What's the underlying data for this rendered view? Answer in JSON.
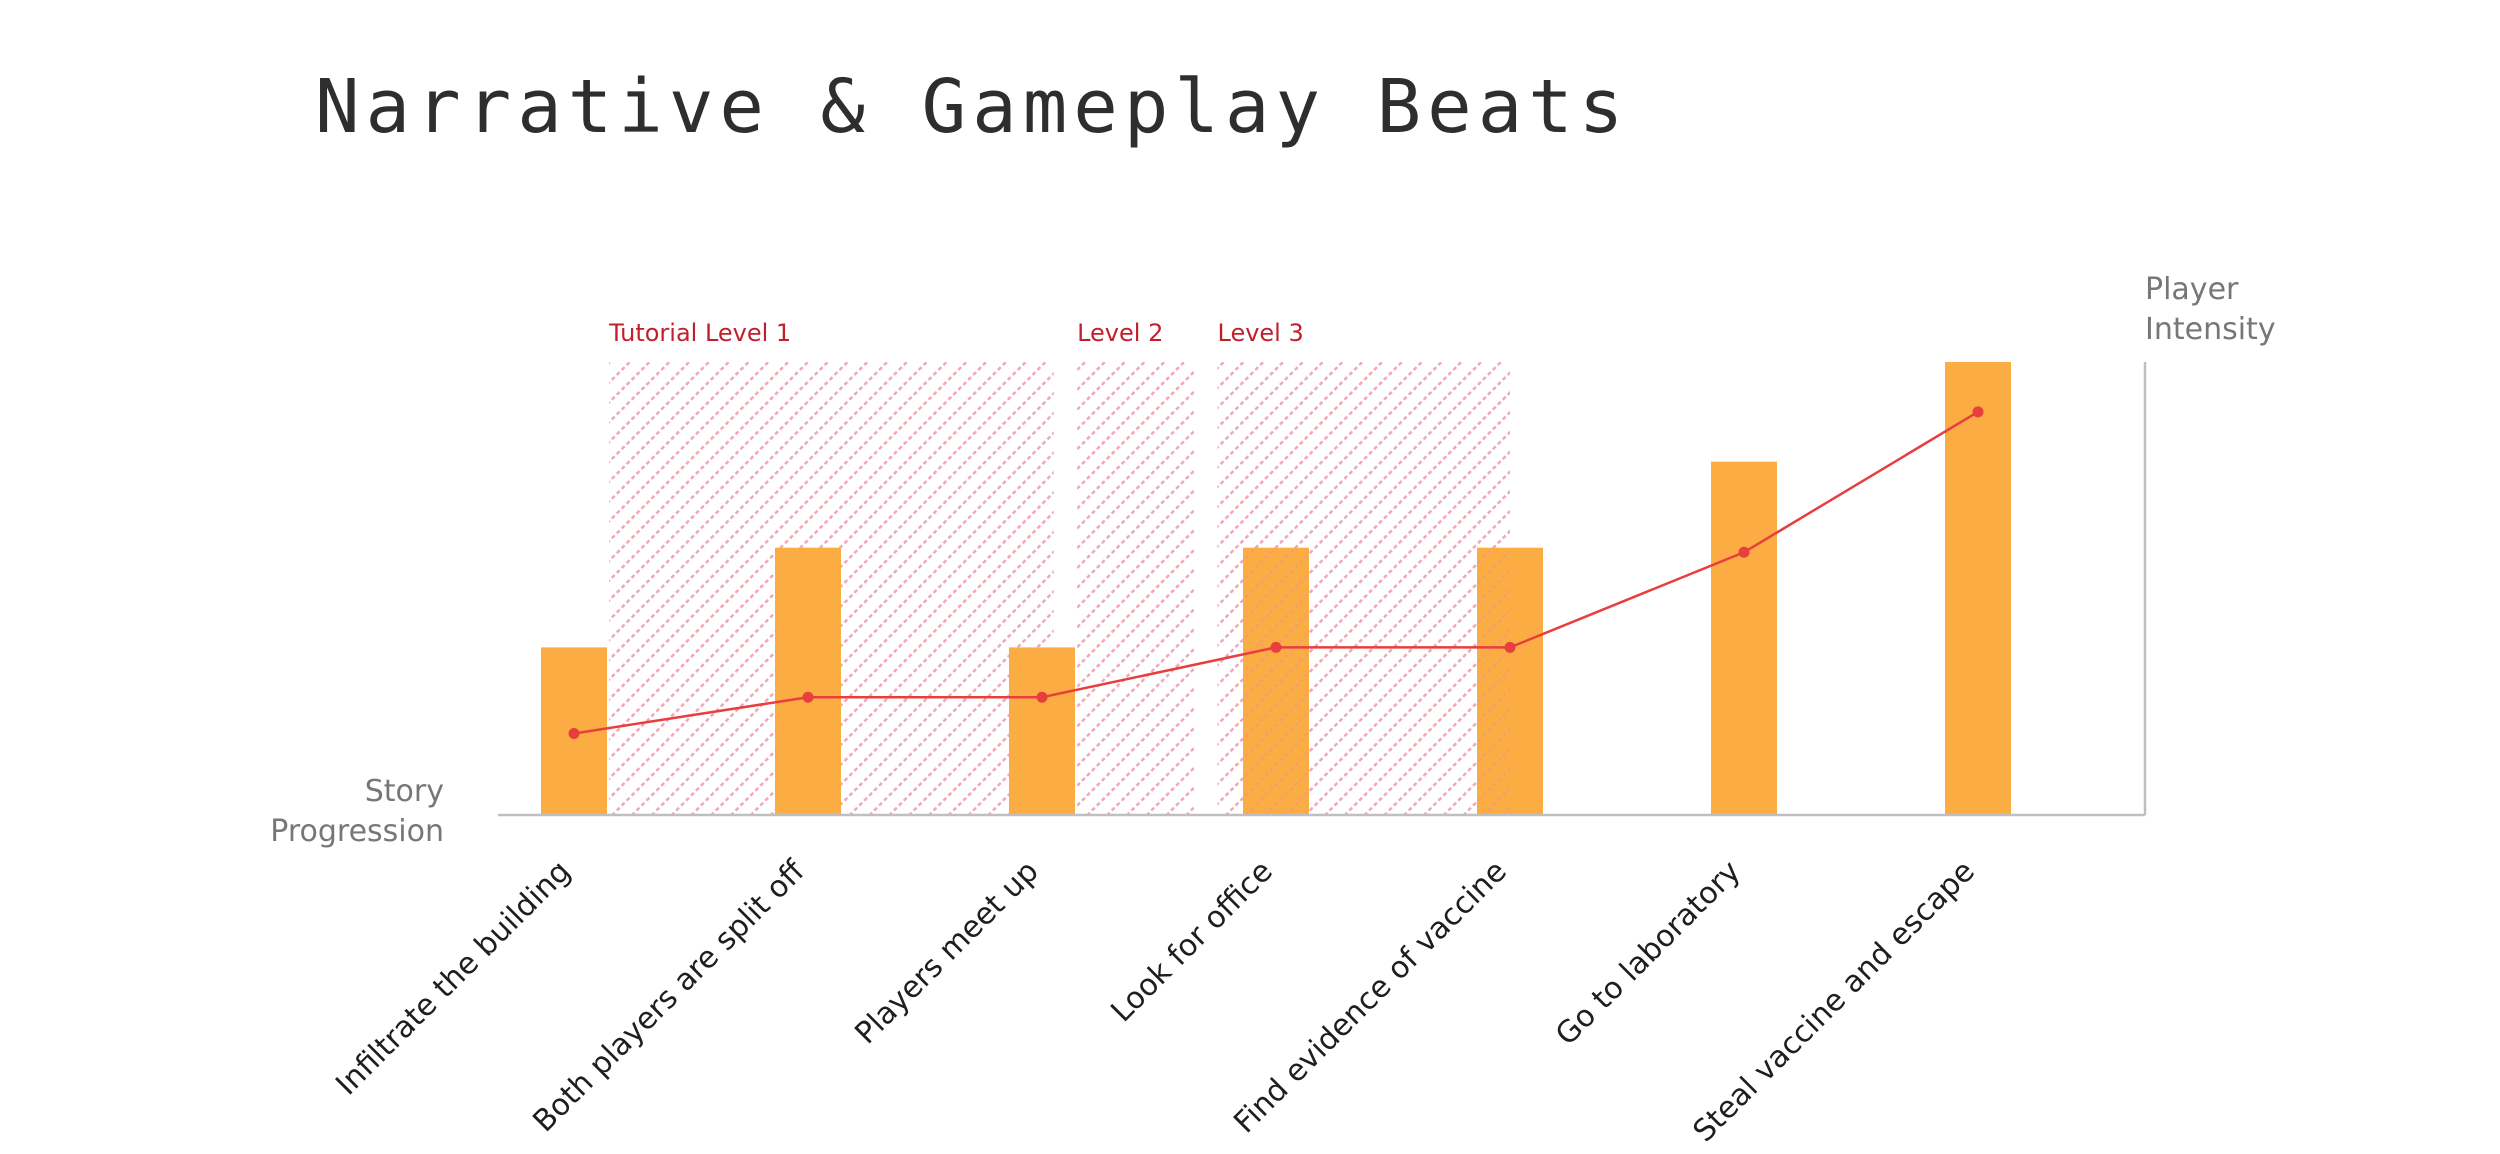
{
  "title": "Narrative & Gameplay Beats",
  "colors": {
    "bar": "#fbad44",
    "line": "#e83e3e",
    "zone": "#ea8c9a",
    "level_label": "#c21f2c",
    "axis": "#bfbfbf"
  },
  "chart_data": {
    "type": "bar",
    "title": "Narrative & Gameplay Beats",
    "xlabel": "Story Progression",
    "ylabel": "Player Intensity",
    "categories": [
      "Infiltrate the building",
      "Both players are split off",
      "Players meet up",
      "Look for office",
      "Find evidence of vaccine",
      "Go to laboratory",
      "Steal vaccine and escape"
    ],
    "ylim": [
      0,
      10
    ],
    "grid": false,
    "legend": "none",
    "series": [
      {
        "type": "bar",
        "values": [
          3.7,
          5.9,
          3.7,
          5.9,
          5.9,
          7.8,
          10
        ]
      },
      {
        "type": "line",
        "values": [
          1.8,
          2.6,
          2.6,
          3.7,
          3.7,
          5.8,
          8.9
        ]
      }
    ],
    "annotations": [
      {
        "label": "Tutorial Level 1",
        "x_start": 0.15,
        "x_end": 2.05
      },
      {
        "label": "Level 2",
        "x_start": 2.15,
        "x_end": 2.65
      },
      {
        "label": "Level 3",
        "x_start": 2.75,
        "x_end": 4.0
      }
    ]
  }
}
